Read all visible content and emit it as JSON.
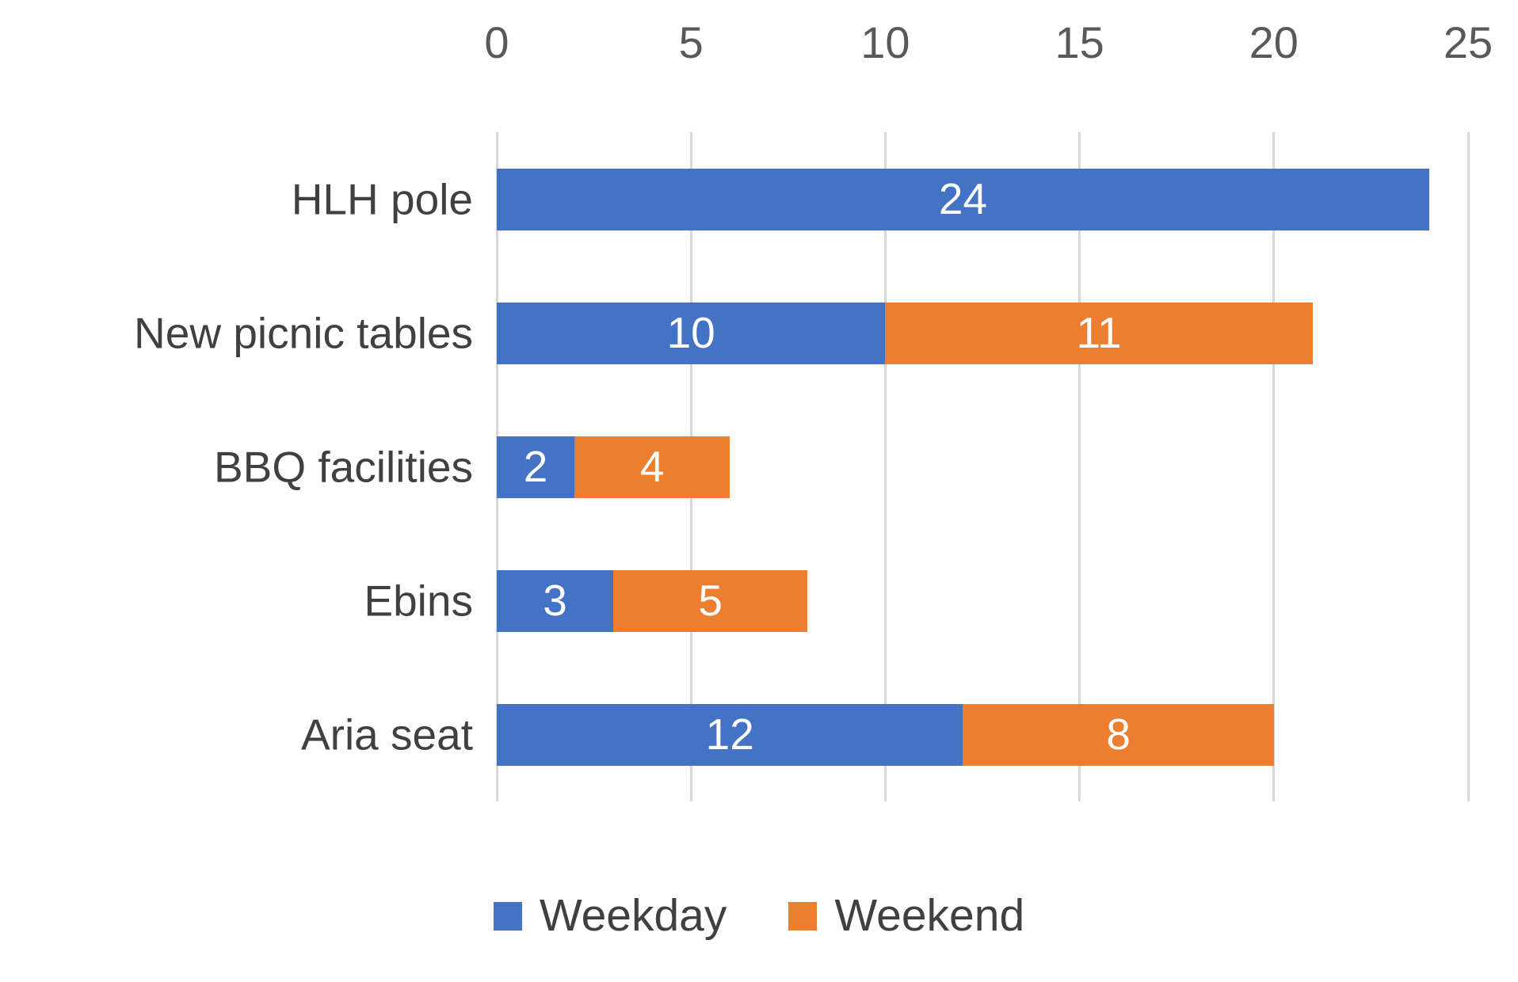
{
  "chart_data": {
    "type": "bar",
    "orientation": "horizontal",
    "stacked": true,
    "title": "",
    "xlabel": "",
    "ylabel": "",
    "categories": [
      "HLH pole",
      "New picnic tables",
      "BBQ facilities",
      "Ebins",
      "Aria seat"
    ],
    "series": [
      {
        "name": "Weekday",
        "color": "#4472C4",
        "values": [
          24,
          10,
          2,
          3,
          12
        ]
      },
      {
        "name": "Weekend",
        "color": "#ED7D31",
        "values": [
          0,
          11,
          4,
          5,
          8
        ]
      }
    ],
    "totals": [
      24,
      21,
      6,
      8,
      20
    ],
    "x_axis": {
      "position": "top",
      "min": 0,
      "max": 25,
      "ticks": [
        0,
        5,
        10,
        15,
        20,
        25
      ],
      "tick_labels": [
        "0",
        "5",
        "10",
        "15",
        "20",
        "25"
      ]
    },
    "grid": true,
    "data_labels": "value shown in white inside each segment, hidden when 0",
    "legend_position": "bottom"
  },
  "legend": {
    "items": [
      {
        "label": "Weekday",
        "color": "#4472C4"
      },
      {
        "label": "Weekend",
        "color": "#ED7D31"
      }
    ]
  },
  "colors": {
    "weekday_blue": "#4472C4",
    "weekend_orange": "#ED7D31",
    "gridline": "#d8d8d8",
    "tick_text": "#595959",
    "label_text": "#404040",
    "bar_value_text": "#ffffff",
    "background": "#ffffff"
  }
}
